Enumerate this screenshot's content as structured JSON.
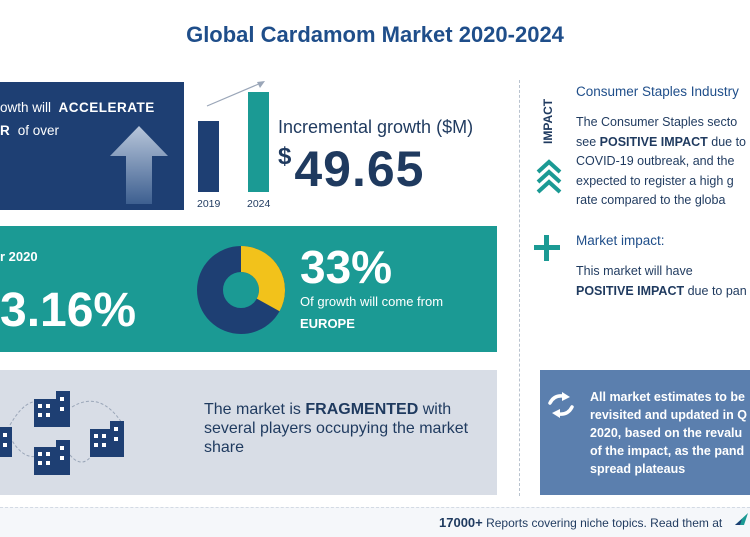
{
  "title": "Global Cardamom Market 2020-2024",
  "growth_box": {
    "line1_text": "owth will",
    "line1_bold": "ACCELERATE",
    "line2_bold": "R",
    "line2_text": "of over"
  },
  "bars": {
    "year_start": "2019",
    "year_end": "2024"
  },
  "incremental": {
    "label": "Incremental growth ($M)",
    "currency": "$",
    "value": "49.65"
  },
  "yoy": {
    "label": "r 2020",
    "value": "3.16%"
  },
  "region_share": {
    "percent_text": "33%",
    "percent_value": 33,
    "label": "Of growth will come from",
    "region": "EUROPE"
  },
  "fragmented": {
    "text1": "The market is",
    "bold": "FRAGMENTED",
    "text2": "with several players occupying the market share"
  },
  "impact_panel": {
    "vertical_label": "IMPACT",
    "heading1": "Consumer Staples Industry",
    "body1_line1": "The Consumer Staples secto",
    "body1_line2_pre": "see",
    "body1_line2_bold": "POSITIVE IMPACT",
    "body1_line2_post": "due to",
    "body1_line3": "COVID-19 outbreak, and the",
    "body1_line4": "expected to register a high g",
    "body1_line5": "rate compared to the globa",
    "heading2": "Market impact:",
    "body2_line1": "This market will have",
    "body2_line2_bold": "POSITIVE IMPACT",
    "body2_line2_post": "due to pan"
  },
  "estimates": {
    "line1": "All market estimates to be",
    "line2": "revisited and updated in Q",
    "line3": "2020, based on the revalu",
    "line4": "of the impact, as the pand",
    "line5": "spread plateaus"
  },
  "footer": {
    "count": "17000+",
    "text": "Reports covering niche topics. Read them at"
  },
  "colors": {
    "navy": "#1e3f73",
    "teal": "#1b9a94",
    "yellow": "#f2c21b",
    "slate": "#5b7fae",
    "gray_panel": "#d8dde6"
  }
}
